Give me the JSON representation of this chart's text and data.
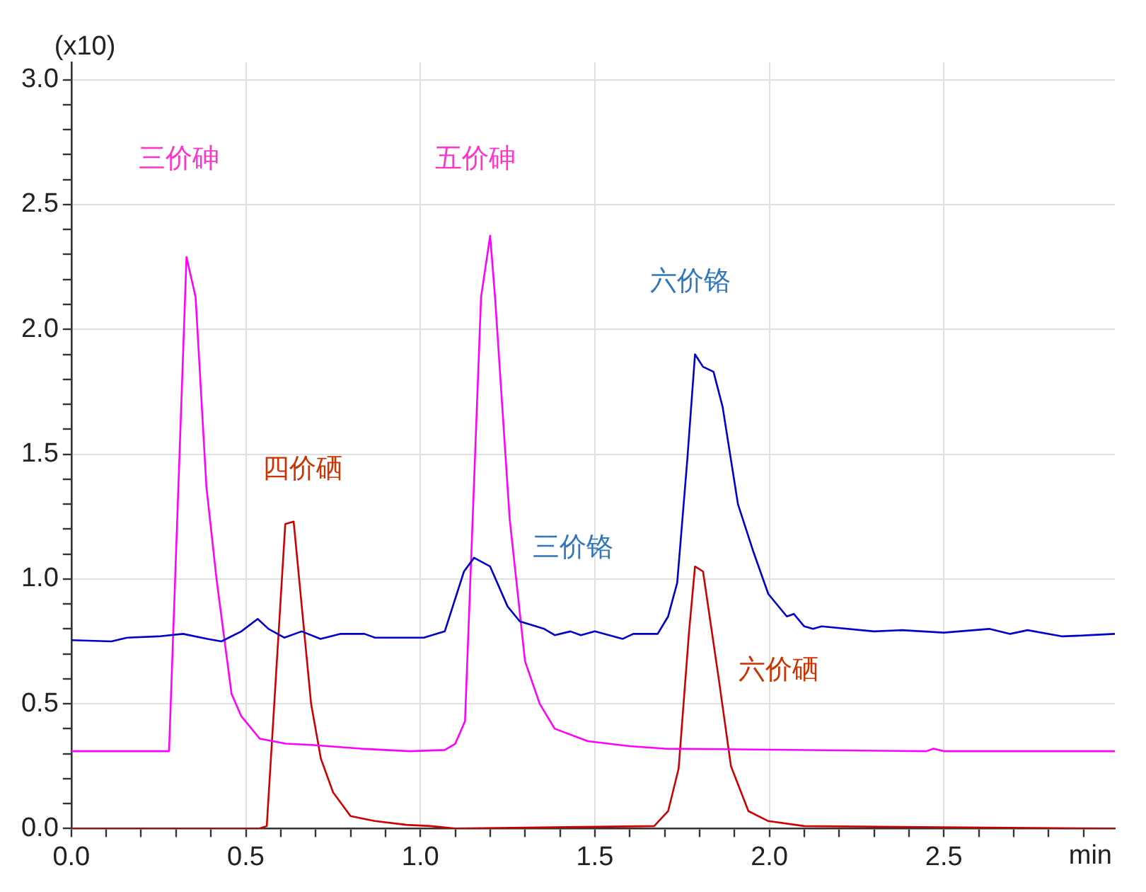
{
  "chart_data": {
    "type": "line",
    "xlabel": "min",
    "ylabel": "(x10)",
    "xlim": [
      0,
      2.99
    ],
    "ylim": [
      0,
      3.07
    ],
    "xticks": [
      {
        "value": 0,
        "label": "0.0"
      },
      {
        "value": 0.1,
        "label": null
      },
      {
        "value": 0.2,
        "label": null
      },
      {
        "value": 0.3,
        "label": null
      },
      {
        "value": 0.4,
        "label": null
      },
      {
        "value": 0.5,
        "label": "0.5"
      },
      {
        "value": 0.6,
        "label": null
      },
      {
        "value": 0.7,
        "label": null
      },
      {
        "value": 0.8,
        "label": null
      },
      {
        "value": 0.9,
        "label": null
      },
      {
        "value": 1,
        "label": "1.0"
      },
      {
        "value": 1.1,
        "label": null
      },
      {
        "value": 1.2,
        "label": null
      },
      {
        "value": 1.3,
        "label": null
      },
      {
        "value": 1.4,
        "label": null
      },
      {
        "value": 1.5,
        "label": "1.5"
      },
      {
        "value": 1.6,
        "label": null
      },
      {
        "value": 1.7,
        "label": null
      },
      {
        "value": 1.8,
        "label": null
      },
      {
        "value": 1.9,
        "label": null
      },
      {
        "value": 2,
        "label": "2.0"
      },
      {
        "value": 2.1,
        "label": null
      },
      {
        "value": 2.2,
        "label": null
      },
      {
        "value": 2.3,
        "label": null
      },
      {
        "value": 2.4,
        "label": null
      },
      {
        "value": 2.5,
        "label": "2.5"
      },
      {
        "value": 2.6,
        "label": null
      },
      {
        "value": 2.7,
        "label": null
      },
      {
        "value": 2.8,
        "label": null
      },
      {
        "value": 2.9,
        "label": null
      }
    ],
    "yticks": [
      {
        "value": 0,
        "label": "0.0"
      },
      {
        "value": 0.1,
        "label": null
      },
      {
        "value": 0.2,
        "label": null
      },
      {
        "value": 0.3,
        "label": null
      },
      {
        "value": 0.4,
        "label": null
      },
      {
        "value": 0.5,
        "label": "0.5"
      },
      {
        "value": 0.6,
        "label": null
      },
      {
        "value": 0.7,
        "label": null
      },
      {
        "value": 0.8,
        "label": null
      },
      {
        "value": 0.9,
        "label": null
      },
      {
        "value": 1,
        "label": "1.0"
      },
      {
        "value": 1.1,
        "label": null
      },
      {
        "value": 1.2,
        "label": null
      },
      {
        "value": 1.3,
        "label": null
      },
      {
        "value": 1.4,
        "label": null
      },
      {
        "value": 1.5,
        "label": "1.5"
      },
      {
        "value": 1.6,
        "label": null
      },
      {
        "value": 1.7,
        "label": null
      },
      {
        "value": 1.8,
        "label": null
      },
      {
        "value": 1.9,
        "label": null
      },
      {
        "value": 2,
        "label": "2.0"
      },
      {
        "value": 2.1,
        "label": null
      },
      {
        "value": 2.2,
        "label": null
      },
      {
        "value": 2.3,
        "label": null
      },
      {
        "value": 2.4,
        "label": null
      },
      {
        "value": 2.5,
        "label": "2.5"
      },
      {
        "value": 2.6,
        "label": null
      },
      {
        "value": 2.7,
        "label": null
      },
      {
        "value": 2.8,
        "label": null
      },
      {
        "value": 2.9,
        "label": null
      },
      {
        "value": 3,
        "label": "3.0"
      }
    ],
    "grid": true,
    "legend": false,
    "marker": "none",
    "line_style": "solid",
    "series": [
      {
        "color": "#0000cc",
        "x": [
          0,
          0.115,
          0.16,
          0.25,
          0.32,
          0.39,
          0.43,
          0.487,
          0.534,
          0.565,
          0.61,
          0.66,
          0.714,
          0.77,
          0.84,
          0.87,
          1.01,
          1.07,
          1.125,
          1.154,
          1.2,
          1.25,
          1.285,
          1.355,
          1.385,
          1.43,
          1.46,
          1.5,
          1.58,
          1.61,
          1.68,
          1.71,
          1.736,
          1.765,
          1.787,
          1.81,
          1.84,
          1.866,
          1.91,
          1.954,
          1.997,
          2.05,
          2.07,
          2.1,
          2.125,
          2.15,
          2.3,
          2.38,
          2.5,
          2.63,
          2.69,
          2.74,
          2.84,
          2.92,
          2.99
        ],
        "values": [
          0.755,
          0.75,
          0.765,
          0.77,
          0.78,
          0.76,
          0.75,
          0.79,
          0.84,
          0.8,
          0.765,
          0.79,
          0.76,
          0.78,
          0.78,
          0.765,
          0.765,
          0.79,
          1.03,
          1.085,
          1.05,
          0.89,
          0.83,
          0.8,
          0.775,
          0.79,
          0.775,
          0.79,
          0.76,
          0.78,
          0.78,
          0.85,
          0.985,
          1.48,
          1.9,
          1.85,
          1.83,
          1.69,
          1.3,
          1.11,
          0.94,
          0.85,
          0.86,
          0.81,
          0.8,
          0.81,
          0.79,
          0.795,
          0.785,
          0.8,
          0.78,
          0.795,
          0.77,
          0.775,
          0.78
        ]
      },
      {
        "color": "#ff00ff",
        "x": [
          0,
          0.28,
          0.33,
          0.356,
          0.387,
          0.416,
          0.459,
          0.487,
          0.54,
          0.615,
          0.687,
          0.83,
          0.97,
          1.07,
          1.1,
          1.128,
          1.174,
          1.2,
          1.214,
          1.256,
          1.3,
          1.342,
          1.385,
          1.48,
          1.6,
          1.7,
          2.45,
          2.47,
          2.5,
          2.99
        ],
        "values": [
          0.31,
          0.31,
          2.29,
          2.13,
          1.37,
          1,
          0.54,
          0.45,
          0.36,
          0.34,
          0.335,
          0.32,
          0.31,
          0.315,
          0.34,
          0.43,
          2.13,
          2.375,
          2.13,
          1.24,
          0.67,
          0.5,
          0.4,
          0.35,
          0.33,
          0.32,
          0.31,
          0.32,
          0.31,
          0.31
        ]
      },
      {
        "color": "#cc0000",
        "x": [
          0,
          0.537,
          0.56,
          0.613,
          0.637,
          0.687,
          0.715,
          0.75,
          0.8,
          0.87,
          0.96,
          1.03,
          1.1,
          1.67,
          1.71,
          1.74,
          1.77,
          1.787,
          1.81,
          1.855,
          1.89,
          1.94,
          1.997,
          2.1,
          2.99
        ],
        "values": [
          0,
          0,
          0.01,
          1.22,
          1.23,
          0.5,
          0.28,
          0.145,
          0.05,
          0.03,
          0.015,
          0.01,
          0,
          0.01,
          0.07,
          0.24,
          0.79,
          1.05,
          1.03,
          0.6,
          0.25,
          0.07,
          0.03,
          0.01,
          0
        ]
      }
    ],
    "annotations": [
      "三价砷",
      "五价砷",
      "六价铬",
      "四价硒",
      "三价铬",
      "六价硒"
    ]
  }
}
